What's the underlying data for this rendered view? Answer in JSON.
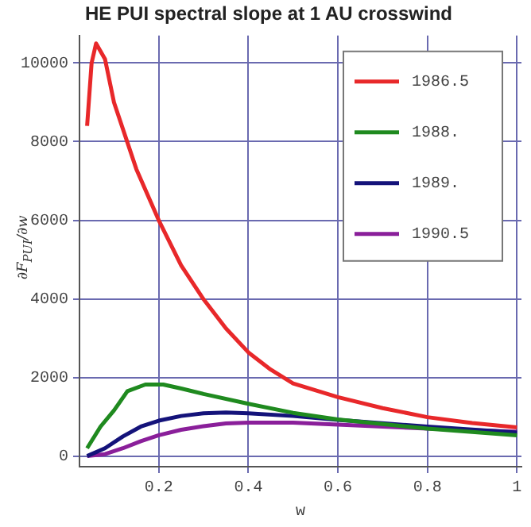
{
  "chart_data": {
    "type": "line",
    "title": "HE PUI spectral slope at 1 AU crosswind",
    "xlabel": "w",
    "ylabel": "∂F$_{PUI}$/∂w",
    "xlim": [
      0.023,
      1.01
    ],
    "xticks": [
      0.2,
      0.4,
      0.6,
      0.8,
      1
    ],
    "ylim": [
      -270,
      10700
    ],
    "yticks": [
      0,
      2000,
      4000,
      6000,
      8000,
      10000
    ],
    "grid": true,
    "legend": "top right",
    "marker": "none",
    "line_style": "solid",
    "series": [
      {
        "name": "1986.5",
        "color": "#e8282a",
        "x": [
          0.04,
          0.05,
          0.06,
          0.08,
          0.1,
          0.15,
          0.2,
          0.25,
          0.3,
          0.35,
          0.4,
          0.45,
          0.5,
          0.6,
          0.7,
          0.8,
          0.9,
          1.0
        ],
        "values": [
          8400,
          10000,
          10500,
          10100,
          9000,
          7300,
          6000,
          4850,
          3990,
          3250,
          2640,
          2200,
          1850,
          1500,
          1220,
          990,
          840,
          730
        ]
      },
      {
        "name": "1988.",
        "color": "#1f8a1f",
        "x": [
          0.04,
          0.07,
          0.1,
          0.13,
          0.17,
          0.21,
          0.25,
          0.3,
          0.4,
          0.5,
          0.6,
          0.8,
          1.0
        ],
        "values": [
          200,
          750,
          1160,
          1650,
          1820,
          1820,
          1720,
          1580,
          1330,
          1100,
          930,
          700,
          530
        ]
      },
      {
        "name": "1989.",
        "color": "#14137a",
        "x": [
          0.04,
          0.08,
          0.12,
          0.16,
          0.2,
          0.25,
          0.3,
          0.35,
          0.4,
          0.5,
          0.6,
          0.8,
          1.0
        ],
        "values": [
          0,
          200,
          500,
          750,
          900,
          1020,
          1090,
          1110,
          1090,
          1020,
          920,
          750,
          600
        ]
      },
      {
        "name": "1990.5",
        "color": "#8a1f9a",
        "x": [
          0.04,
          0.08,
          0.12,
          0.16,
          0.2,
          0.25,
          0.3,
          0.35,
          0.4,
          0.5,
          0.6,
          0.8,
          1.0
        ],
        "values": [
          0,
          50,
          200,
          380,
          530,
          670,
          760,
          830,
          850,
          850,
          800,
          700,
          620
        ]
      }
    ]
  }
}
